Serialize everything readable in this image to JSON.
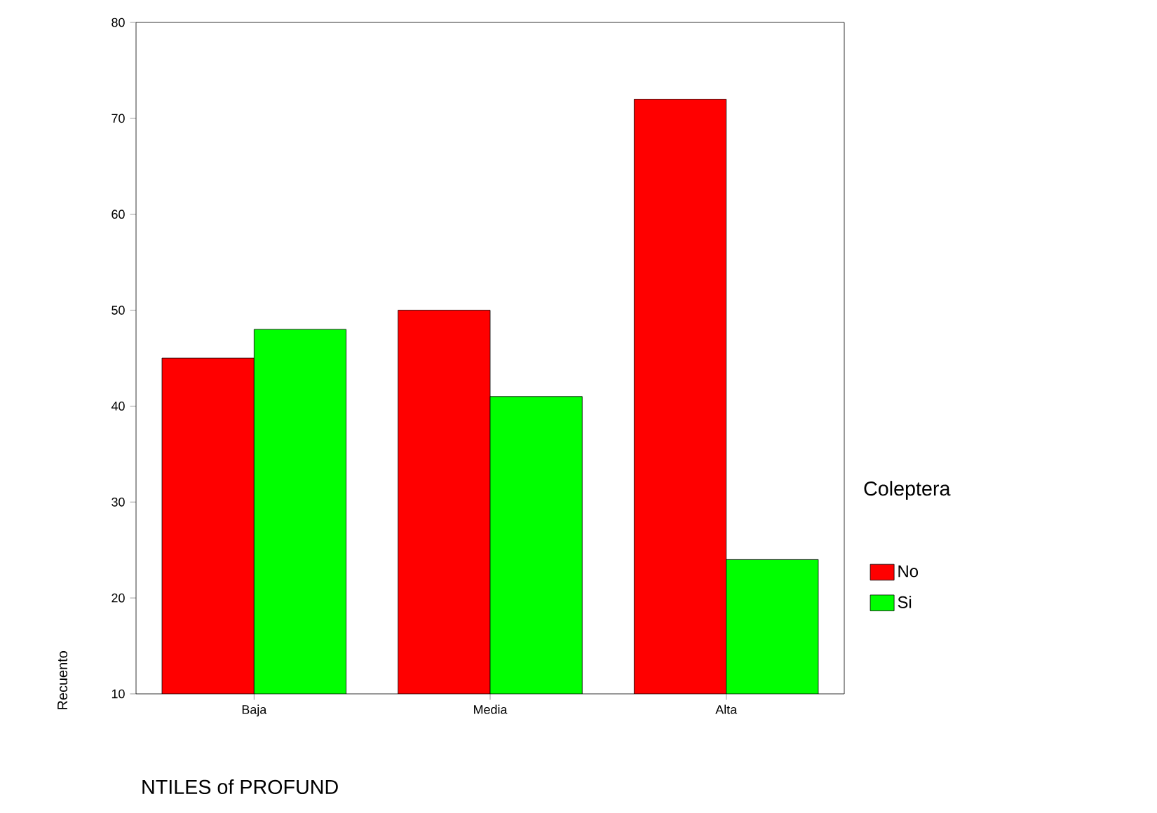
{
  "chart_data": {
    "type": "bar",
    "xlabel": "NTILES of PROFUND",
    "ylabel": "Recuento",
    "legend_title": "Coleptera",
    "legend": "right",
    "categories": [
      "Baja",
      "Media",
      "Alta"
    ],
    "series": [
      {
        "name": "No",
        "color": "#ff0000",
        "values": [
          45,
          50,
          72
        ]
      },
      {
        "name": "Si",
        "color": "#00ff00",
        "values": [
          48,
          41,
          24
        ]
      }
    ],
    "ylim": [
      10,
      80
    ],
    "yticks": [
      10,
      20,
      30,
      40,
      50,
      60,
      70,
      80
    ]
  }
}
